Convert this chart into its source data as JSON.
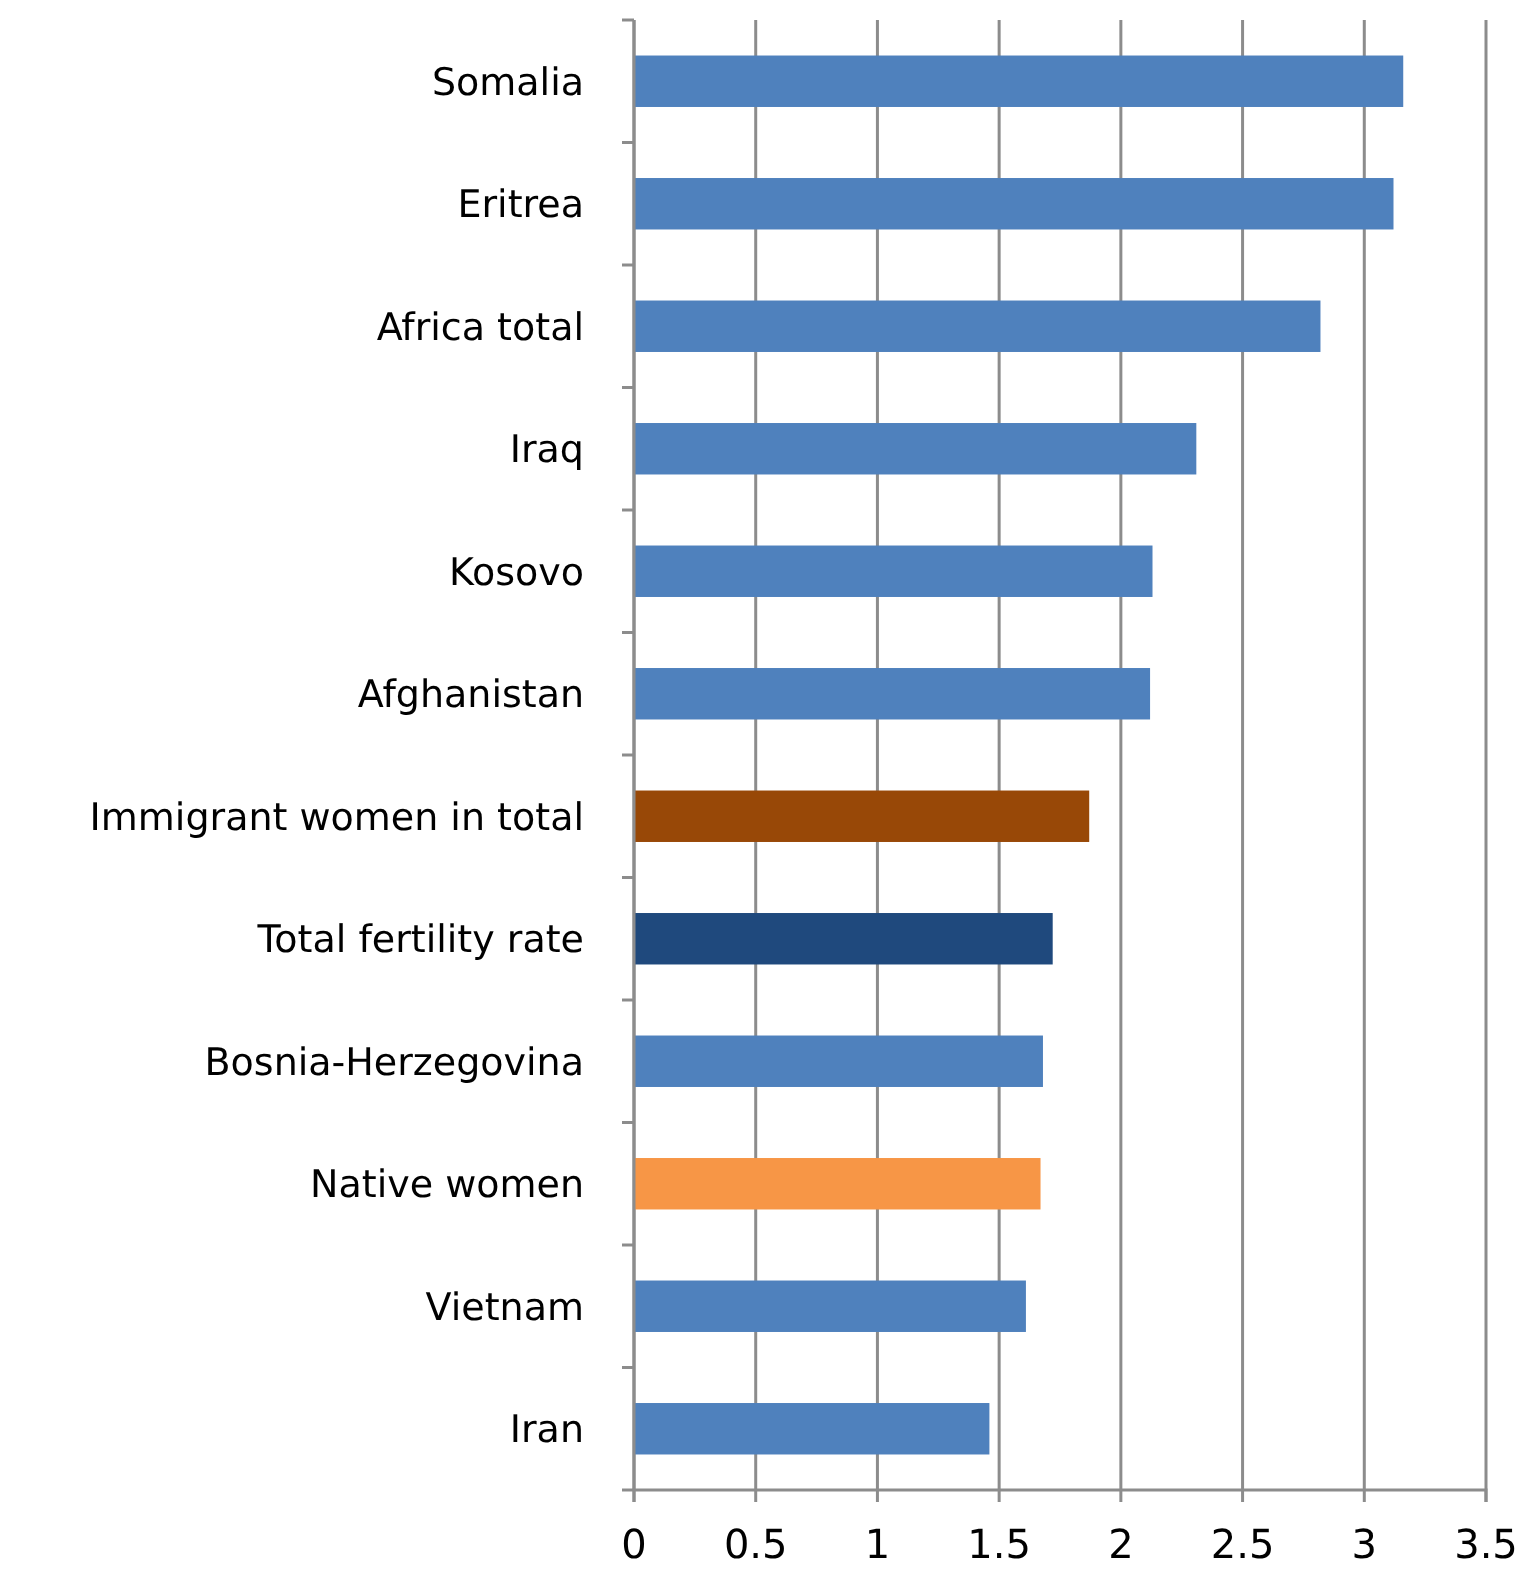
{
  "chart_data": {
    "type": "bar",
    "orientation": "horizontal",
    "categories": [
      "Somalia",
      "Eritrea",
      "Africa total",
      "Iraq",
      "Kosovo",
      "Afghanistan",
      "Immigrant women in total",
      "Total fertility rate",
      "Bosnia-Herzegovina",
      "Native women",
      "Vietnam",
      "Iran"
    ],
    "values": [
      3.16,
      3.12,
      2.82,
      2.31,
      2.13,
      2.12,
      1.87,
      1.72,
      1.68,
      1.67,
      1.61,
      1.46
    ],
    "colors": [
      "#4f81bd",
      "#4f81bd",
      "#4f81bd",
      "#4f81bd",
      "#4f81bd",
      "#4f81bd",
      "#984807",
      "#1f497d",
      "#4f81bd",
      "#f79646",
      "#4f81bd",
      "#4f81bd"
    ],
    "xlim": [
      0,
      3.5
    ],
    "xticks": [
      0,
      0.5,
      1,
      1.5,
      2,
      2.5,
      3,
      3.5
    ],
    "grid": "x"
  }
}
